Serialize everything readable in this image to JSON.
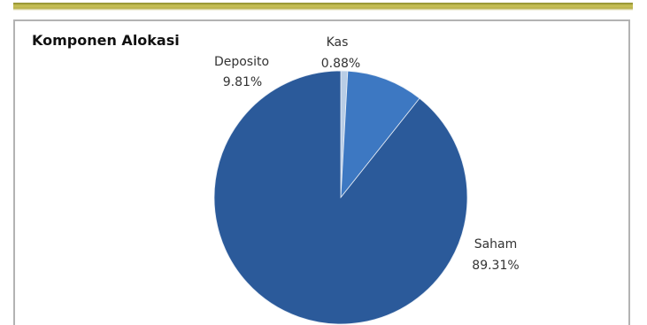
{
  "chart_data": {
    "type": "pie",
    "title": "Komponen Alokasi",
    "slices": [
      {
        "label": "Kas",
        "percent_text": "0.88%",
        "value": 0.88,
        "color": "#b8cde6"
      },
      {
        "label": "Deposito",
        "percent_text": "9.81%",
        "value": 9.81,
        "color": "#3d78c2"
      },
      {
        "label": "Saham",
        "percent_text": "89.31%",
        "value": 89.31,
        "color": "#2b5a9a"
      }
    ]
  }
}
